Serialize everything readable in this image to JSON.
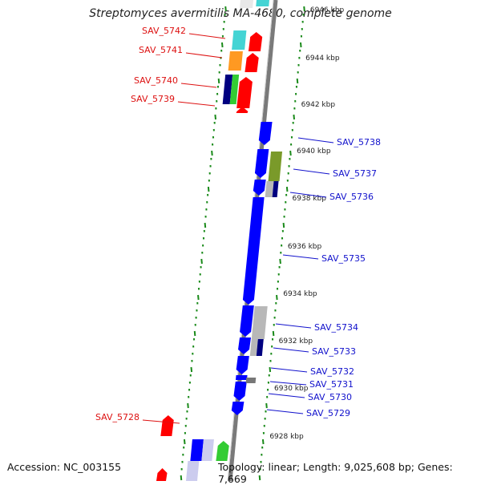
{
  "title": "Streptomyces avermitilis MA-4680, complete genome",
  "accession": "Accession: NC_003155",
  "stats": "Topology: linear; Length: 9,025,608 bp; Genes: 7,669",
  "colors": {
    "axis": "#7a7a7a",
    "tick": "#1a8a1a",
    "label_left": "#dd1111",
    "label_right": "#1111cc",
    "gene_blue": "#0000ff",
    "gene_red": "#ff0000",
    "gene_navy": "#000080",
    "gene_cyan": "#44d4d4",
    "gene_orange": "#ff9922",
    "gene_green": "#33cc33",
    "gene_olive": "#7a9a2a",
    "gene_grey": "#b8b8b8"
  },
  "scale_labels": [
    "6946 kbp",
    "6944 kbp",
    "6942 kbp",
    "6940 kbp",
    "6938 kbp",
    "6936 kbp",
    "6934 kbp",
    "6932 kbp",
    "6930 kbp",
    "6928 kbp"
  ],
  "left_genes": [
    "SAV_5742",
    "SAV_5741",
    "SAV_5740",
    "SAV_5739",
    "SAV_5728"
  ],
  "right_genes": [
    "SAV_5738",
    "SAV_5737",
    "SAV_5736",
    "SAV_5735",
    "SAV_5734",
    "SAV_5733",
    "SAV_5732",
    "SAV_5731",
    "SAV_5730",
    "SAV_5729"
  ]
}
